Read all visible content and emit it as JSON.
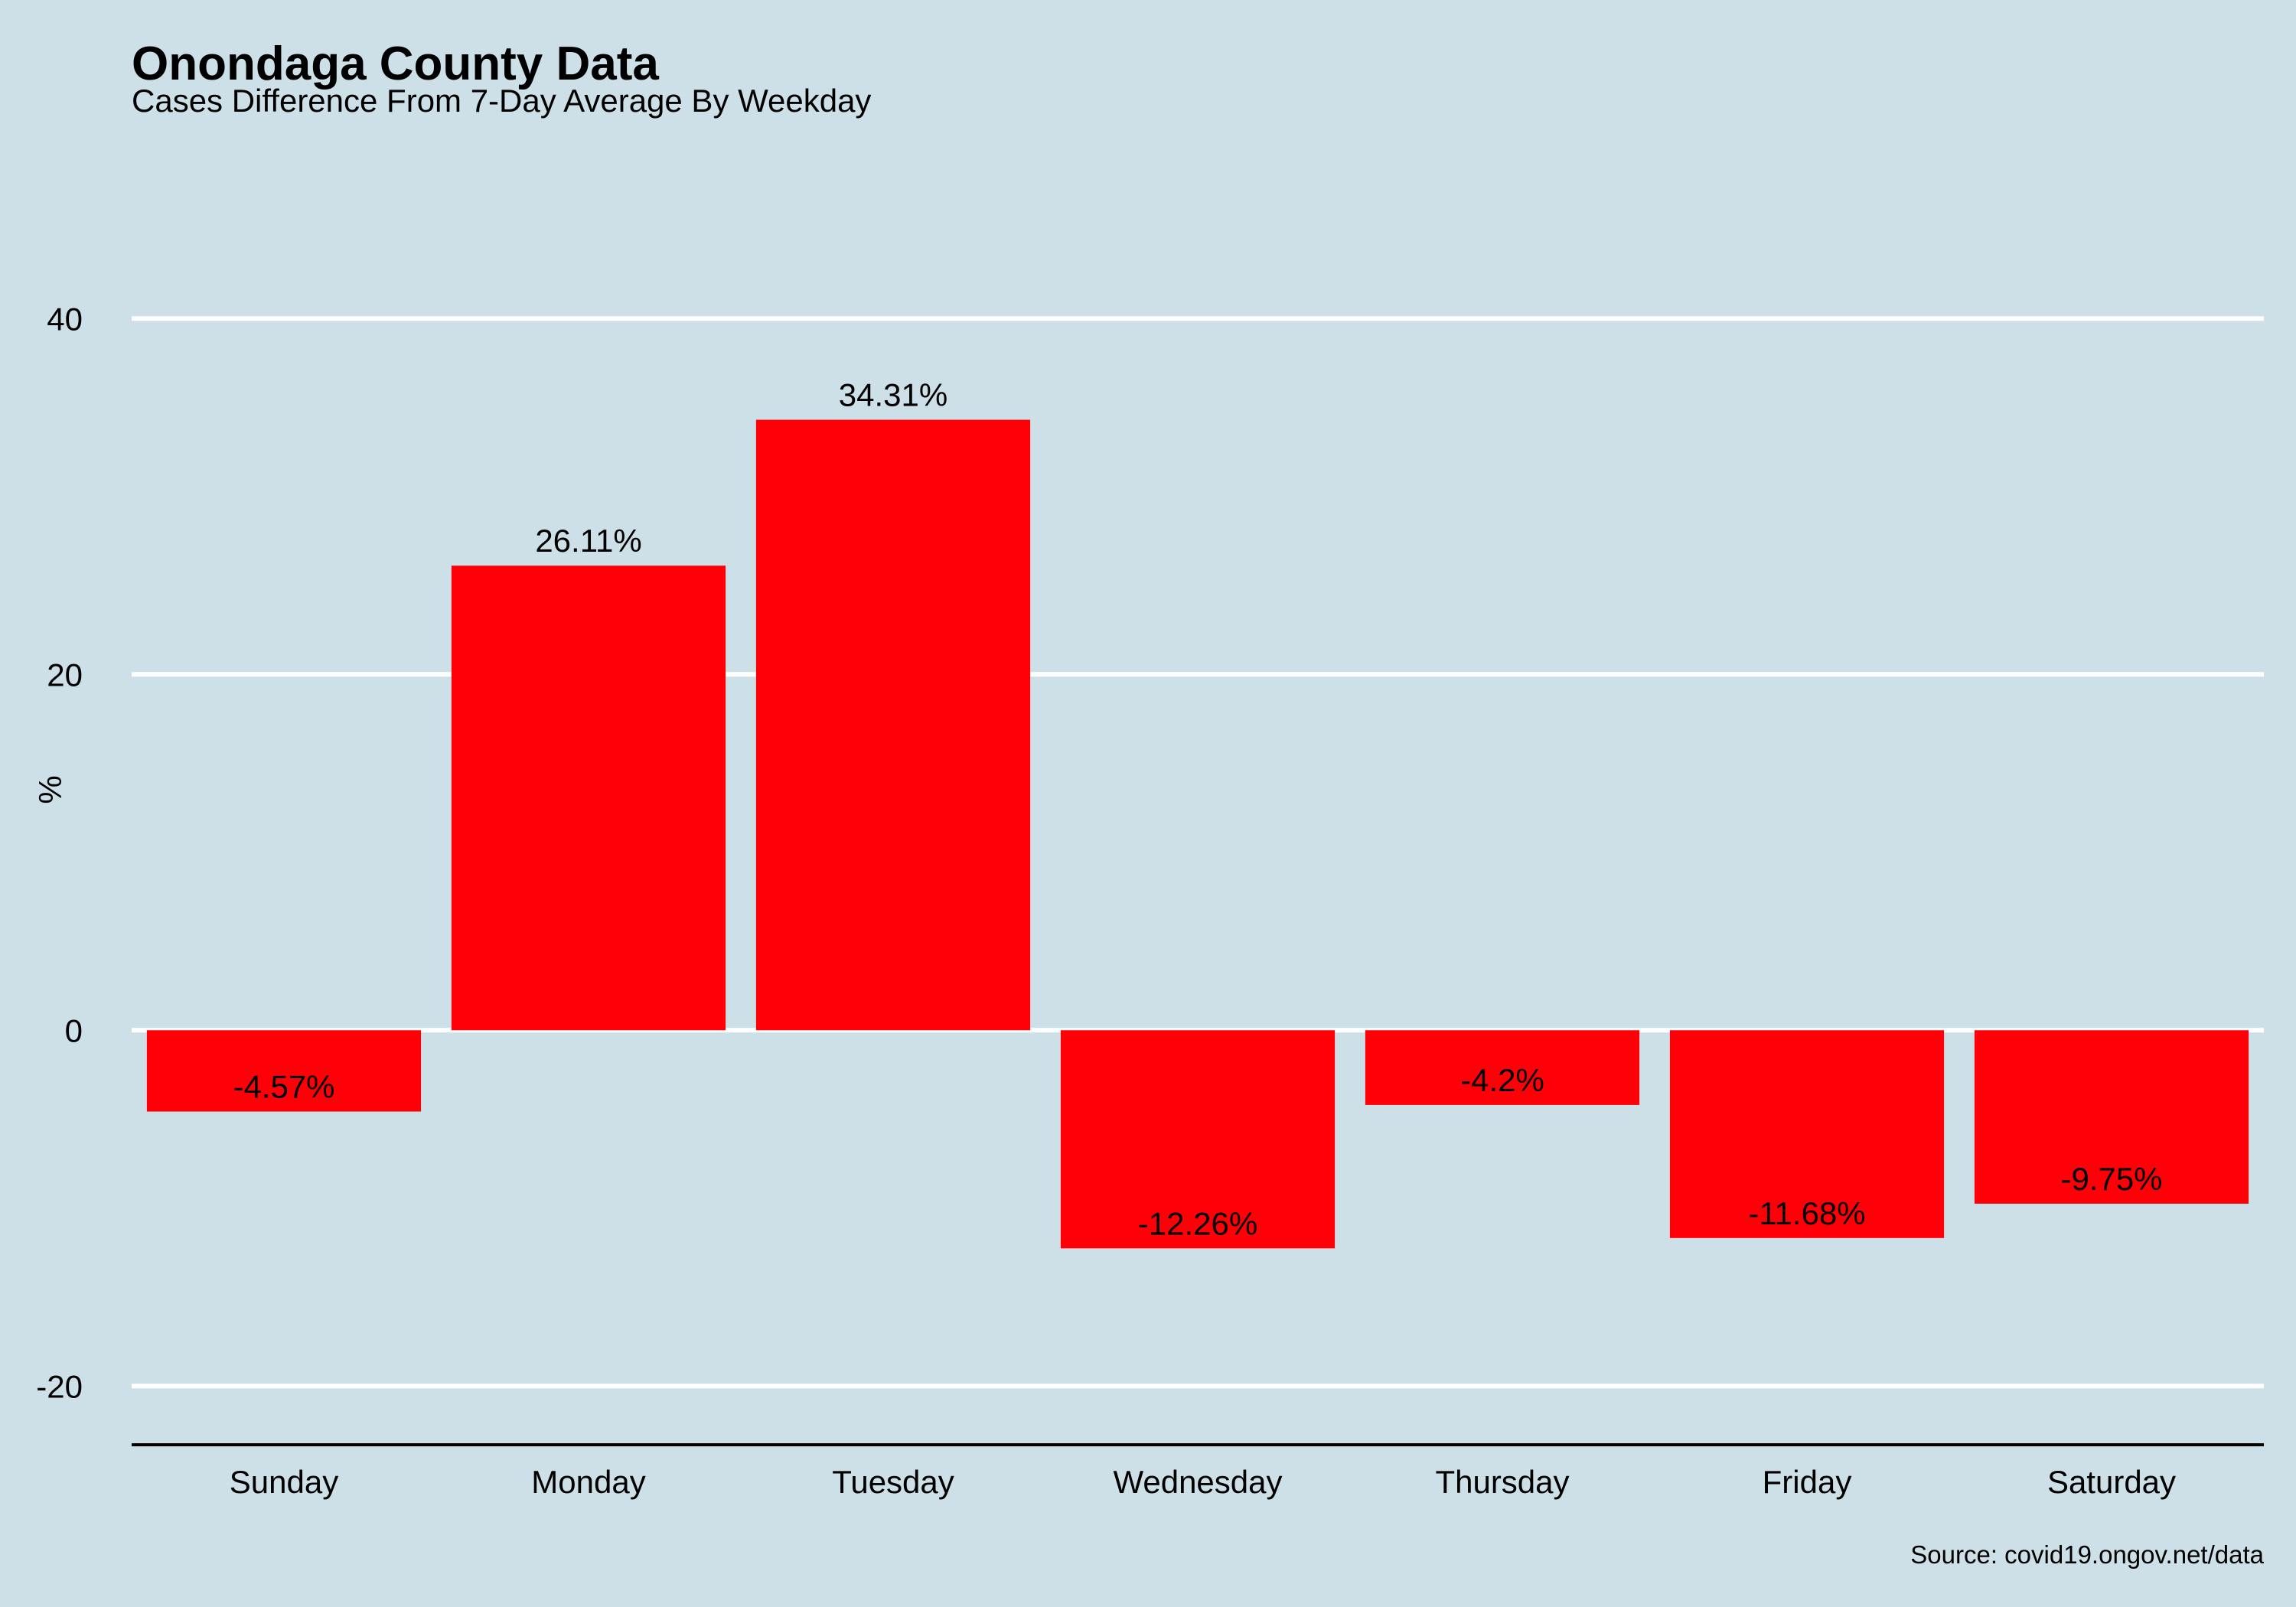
{
  "chart_data": {
    "type": "bar",
    "title": "Onondaga County Data",
    "subtitle": "Cases Difference From 7-Day Average By Weekday",
    "xlabel": "",
    "ylabel": "%",
    "caption": "Source: covid19.ongov.net/data",
    "categories": [
      "Sunday",
      "Monday",
      "Tuesday",
      "Wednesday",
      "Thursday",
      "Friday",
      "Saturday"
    ],
    "values": [
      -4.57,
      26.11,
      34.31,
      -12.26,
      -4.2,
      -11.68,
      -9.75
    ],
    "data_labels": [
      "-4.57%",
      "26.11%",
      "34.31%",
      "-12.26%",
      "-4.2%",
      "-11.68%",
      "-9.75%"
    ],
    "ylim": [
      -23.3,
      45
    ],
    "yticks": [
      -20,
      0,
      20,
      40
    ],
    "ytick_labels": [
      "-20",
      "0",
      "20",
      "40"
    ],
    "grid": "horizontal major lines",
    "legend": "none"
  },
  "colors": {
    "background": "#cddfe7",
    "bar_fill": "#ff0008",
    "gridline": "#ffffff",
    "axis_line": "#000000",
    "text": "#000000"
  }
}
